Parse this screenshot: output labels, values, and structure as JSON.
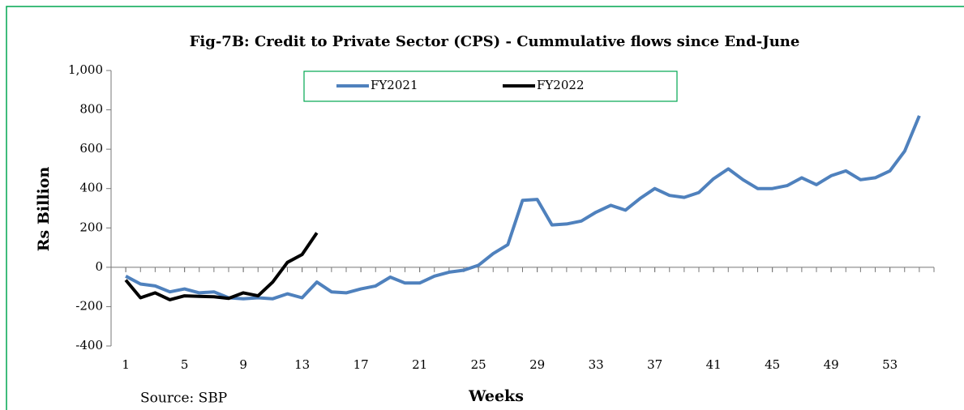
{
  "chart_data": {
    "type": "line",
    "title": "Fig-7B: Credit to Private Sector (CPS) - Cummulative flows since End-June",
    "xlabel": "Weeks",
    "ylabel": "Rs Billion",
    "source": "Source: SBP",
    "x": [
      1,
      2,
      3,
      4,
      5,
      6,
      7,
      8,
      9,
      10,
      11,
      12,
      13,
      14,
      15,
      16,
      17,
      18,
      19,
      20,
      21,
      22,
      23,
      24,
      25,
      26,
      27,
      28,
      29,
      30,
      31,
      32,
      33,
      34,
      35,
      36,
      37,
      38,
      39,
      40,
      41,
      42,
      43,
      44,
      45,
      46,
      47,
      48,
      49,
      50,
      51,
      52,
      53,
      54,
      55
    ],
    "series": [
      {
        "name": "FY2021",
        "color": "#4f81bd",
        "values": [
          -45,
          -85,
          -95,
          -125,
          -110,
          -130,
          -125,
          -155,
          -160,
          -155,
          -160,
          -135,
          -155,
          -75,
          -125,
          -130,
          -110,
          -95,
          -50,
          -80,
          -80,
          -45,
          -25,
          -15,
          10,
          70,
          115,
          340,
          345,
          215,
          220,
          235,
          280,
          315,
          290,
          350,
          400,
          365,
          355,
          380,
          450,
          500,
          445,
          400,
          400,
          415,
          455,
          420,
          465,
          490,
          445,
          455,
          490,
          590,
          770
        ]
      },
      {
        "name": "FY2022",
        "color": "#000000",
        "values": [
          -65,
          -155,
          -130,
          -165,
          -145,
          -148,
          -150,
          -158,
          -130,
          -145,
          -75,
          25,
          65,
          175,
          null,
          null,
          null,
          null,
          null,
          null,
          null,
          null,
          null,
          null,
          null,
          null,
          null,
          null,
          null,
          null,
          null,
          null,
          null,
          null,
          null,
          null,
          null,
          null,
          null,
          null,
          null,
          null,
          null,
          null,
          null,
          null,
          null,
          null,
          null,
          null,
          null,
          null,
          null,
          null,
          null
        ]
      }
    ],
    "xlim": [
      0,
      56
    ],
    "xticks": [
      1,
      5,
      9,
      13,
      17,
      21,
      25,
      29,
      33,
      37,
      41,
      45,
      49,
      53
    ],
    "ylim": [
      -400,
      1000
    ],
    "yticks": [
      -400,
      -200,
      0,
      200,
      400,
      600,
      800,
      {
        "value": 1000,
        "label": "1,000"
      }
    ],
    "legend": "top"
  }
}
